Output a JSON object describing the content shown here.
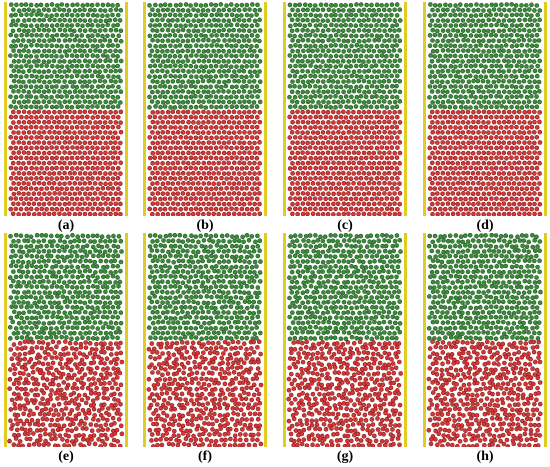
{
  "figure": {
    "panels": [
      {
        "label": "(a)",
        "disorder": 0.0
      },
      {
        "label": "(b)",
        "disorder": 0.0
      },
      {
        "label": "(c)",
        "disorder": 0.0
      },
      {
        "label": "(d)",
        "disorder": 0.0
      },
      {
        "label": "(e)",
        "disorder": 0.9
      },
      {
        "label": "(f)",
        "disorder": 0.9
      },
      {
        "label": "(g)",
        "disorder": 0.9
      },
      {
        "label": "(h)",
        "disorder": 0.9
      }
    ],
    "colors": {
      "top_region": "#3e8a3c",
      "top_region_dark": "#1f5b1f",
      "bottom_region": "#d03a3a",
      "bottom_region_dark": "#8e1717",
      "wall": "#e3cc22",
      "background": "#ffffff"
    }
  }
}
